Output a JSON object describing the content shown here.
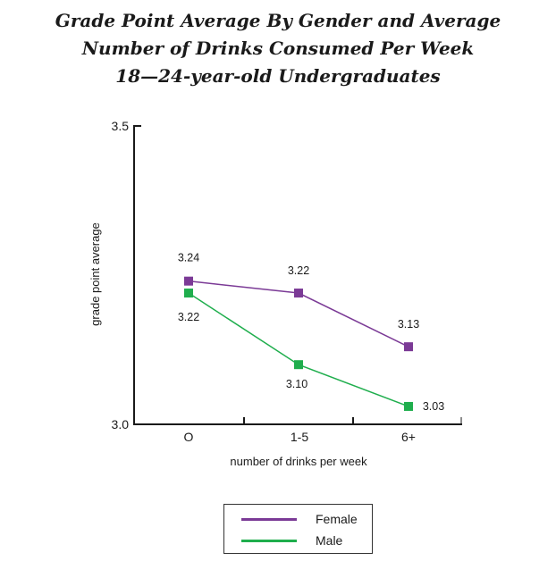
{
  "chart_data": {
    "type": "line",
    "title_lines": [
      "Grade Point Average By Gender and Average",
      "Number of Drinks Consumed Per Week",
      "18—24-year-old Undergraduates"
    ],
    "xlabel": "number of drinks per week",
    "ylabel": "grade point average",
    "categories": [
      "O",
      "1-5",
      "6+"
    ],
    "ylim": [
      3.0,
      3.5
    ],
    "yticks": [
      "3.0",
      "3.5"
    ],
    "grid": false,
    "legend_position": "bottom-center",
    "series": [
      {
        "name": "Female",
        "values": [
          3.24,
          3.22,
          3.13
        ],
        "labels": [
          "3.24",
          "3.22",
          "3.13"
        ],
        "color": "#7b3a96"
      },
      {
        "name": "Male",
        "values": [
          3.22,
          3.1,
          3.03
        ],
        "labels": [
          "3.22",
          "3.10",
          "3.03"
        ],
        "color": "#1fae4d"
      }
    ]
  }
}
